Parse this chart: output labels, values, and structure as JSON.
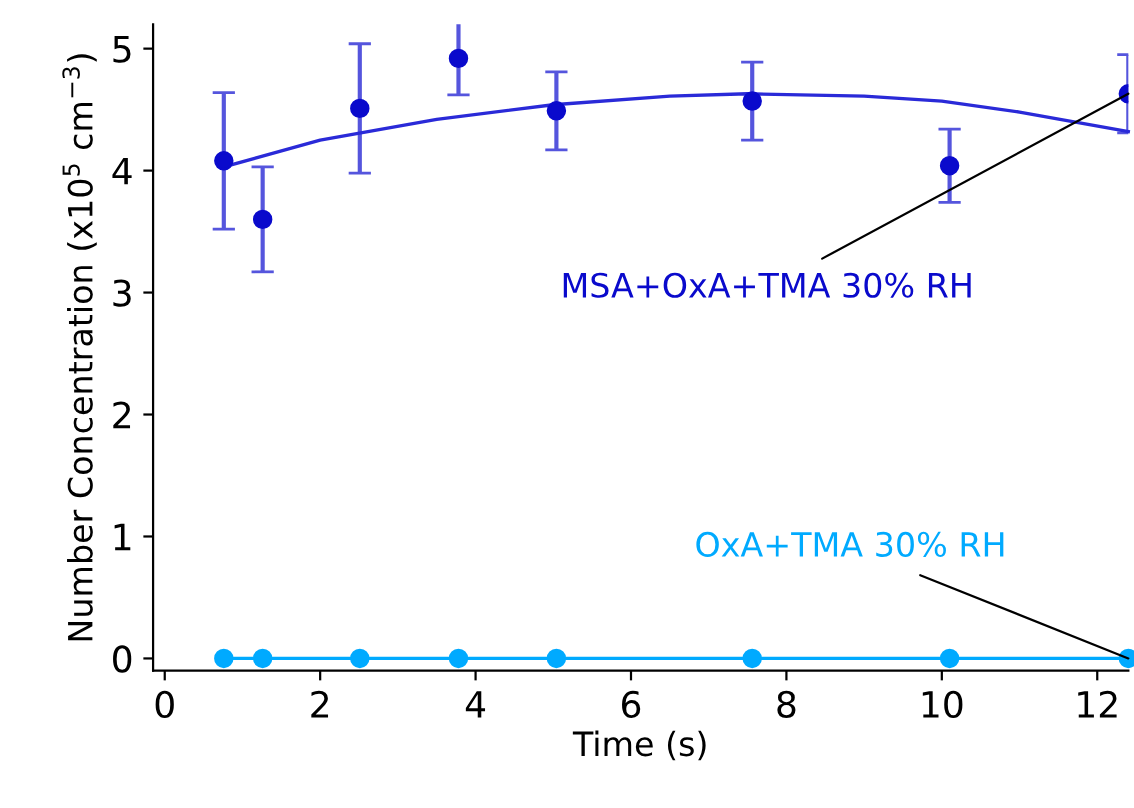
{
  "chart_data": {
    "type": "scatter",
    "xlabel": "Time (s)",
    "ylabel": "Number Concentration (x10$^{5}$ cm$^{−3}$)",
    "xlim": [
      -0.15,
      12.4
    ],
    "xticks": [
      0,
      2,
      4,
      6,
      8,
      10,
      12
    ],
    "ylim": [
      -0.1,
      5.2
    ],
    "yticks": [
      0,
      1,
      2,
      3,
      4,
      5
    ],
    "grid": false,
    "legend": false,
    "marker": "circle",
    "series": [
      {
        "color": "#0a0acc",
        "x": [
          0.76,
          1.26,
          2.51,
          3.78,
          5.04,
          7.56,
          10.1,
          12.4
        ],
        "values": [
          4.08,
          3.6,
          4.51,
          4.92,
          4.49,
          4.57,
          4.04,
          4.63
        ],
        "errors": [
          0.56,
          0.43,
          0.53,
          0.3,
          0.32,
          0.32,
          0.3,
          0.32
        ]
      },
      {
        "type": "line",
        "color": "#2a2ad8",
        "marker": "none",
        "x": [
          0.76,
          2,
          3.5,
          5,
          6.5,
          7.5,
          9,
          10,
          11,
          12.4
        ],
        "values": [
          4.03,
          4.25,
          4.42,
          4.54,
          4.61,
          4.63,
          4.61,
          4.57,
          4.48,
          4.32
        ]
      },
      {
        "type": "line",
        "color": "#00aaff",
        "x": [
          0.76,
          1.26,
          2.51,
          3.78,
          5.04,
          7.56,
          10.1,
          12.4
        ],
        "values": [
          0,
          0,
          0,
          0,
          0,
          0,
          0,
          0
        ]
      }
    ],
    "annotations": [
      {
        "text": "MSA+OxA+TMA 30% RH",
        "x": 12.4,
        "y": 4.63
      },
      {
        "text": "OxA+TMA 30% RH",
        "x": 12.4,
        "y": 0
      }
    ]
  }
}
